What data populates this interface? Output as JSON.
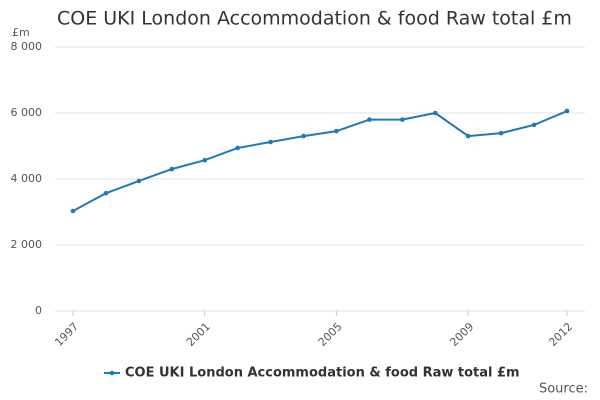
{
  "chart_data": {
    "type": "line",
    "title": "COE UKI London Accommodation & food Raw total £m",
    "y_label": "£m",
    "source": "Source:",
    "x": [
      1997,
      1998,
      1999,
      2000,
      2001,
      2002,
      2003,
      2004,
      2005,
      2006,
      2007,
      2008,
      2009,
      2010,
      2011,
      2012
    ],
    "xlim": [
      1997,
      2012
    ],
    "xticks": [
      1997,
      2001,
      2005,
      2009,
      2012
    ],
    "ylim": [
      0,
      8000
    ],
    "yticks": [
      0,
      {
        "value": 2000,
        "label": "2 000"
      },
      {
        "value": 4000,
        "label": "4 000"
      },
      {
        "value": 6000,
        "label": "6 000"
      },
      {
        "value": 8000,
        "label": "8 000"
      }
    ],
    "grid": true,
    "legend": "bottom",
    "series": [
      {
        "name": "COE UKI London Accommodation & food Raw total £m",
        "color": "#1f7ab5",
        "values": [
          3030,
          3570,
          3940,
          4300,
          4570,
          4940,
          5120,
          5300,
          5450,
          5800,
          5800,
          6000,
          5300,
          5390,
          5640,
          6060
        ]
      }
    ]
  }
}
